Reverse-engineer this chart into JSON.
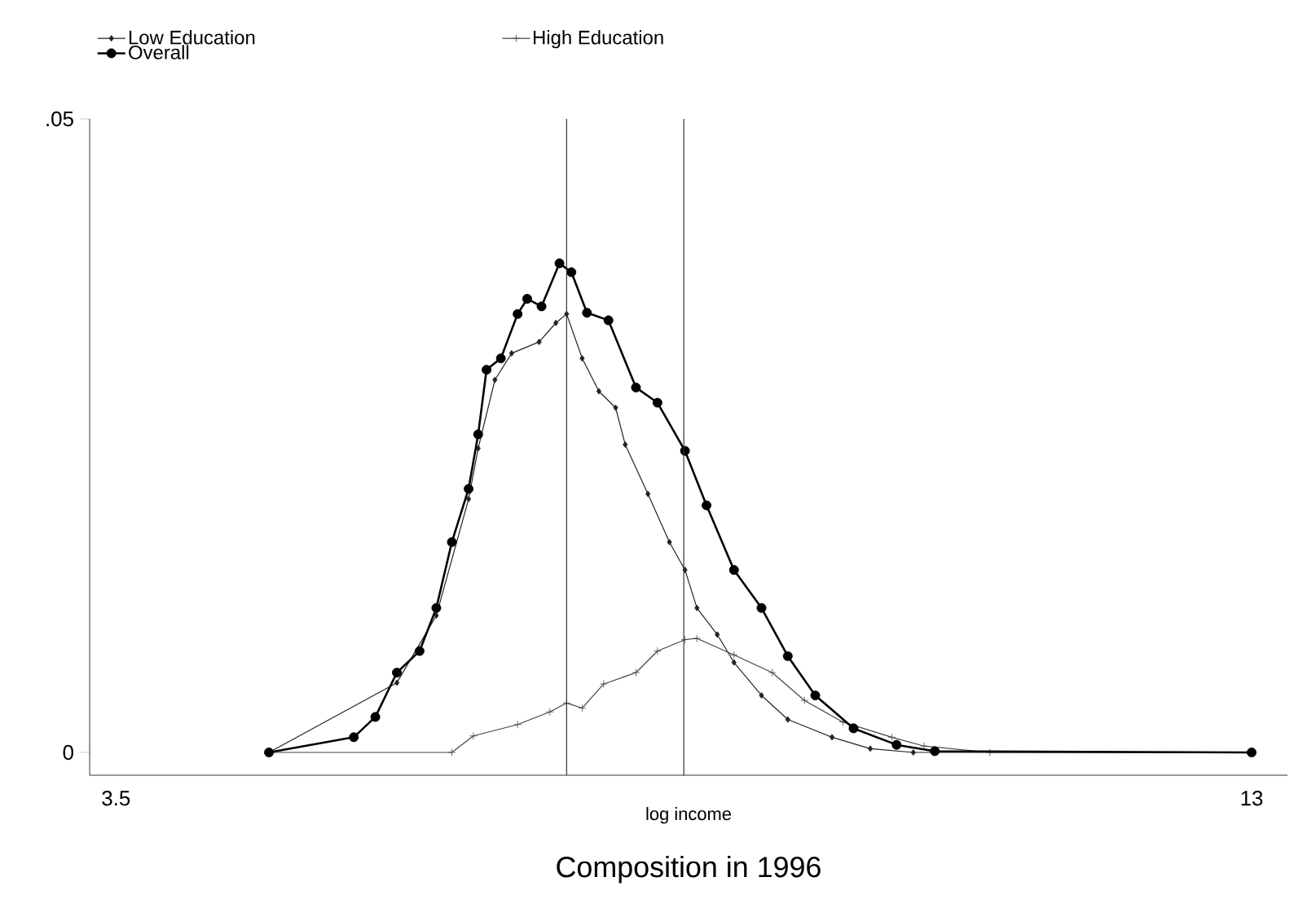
{
  "chart_data": {
    "type": "line",
    "title": "Composition in 1996",
    "xlabel": "log income",
    "xlim": [
      3.28,
      13.3
    ],
    "ylim": [
      -0.0018,
      0.05
    ],
    "xticks": [
      3.5,
      13
    ],
    "yticks": [
      0,
      {
        "value": 0.05,
        "label": ".05"
      }
    ],
    "legend": "top left",
    "grid": false,
    "ref_lines": [
      {
        "axis": "x",
        "value": 7.27,
        "color": "#333333"
      },
      {
        "axis": "x",
        "value": 8.25,
        "color": "#333333"
      }
    ],
    "series": [
      {
        "name": "Low Education",
        "color": "#222222",
        "marker": "diamond",
        "x": [
          4.78,
          5.49,
          5.85,
          6.18,
          6.45,
          6.53,
          6.67,
          6.81,
          7.04,
          7.18,
          7.27,
          7.4,
          7.54,
          7.68,
          7.76,
          7.95,
          8.13,
          8.26,
          8.36,
          8.53,
          8.67,
          8.9,
          9.12,
          9.49,
          9.81,
          10.17,
          13.0
        ],
        "values": [
          0,
          null,
          0.0055,
          0.0108,
          0.02,
          0.024,
          0.0294,
          0.0315,
          0.0324,
          0.0339,
          0.0346,
          0.0311,
          0.0285,
          0.0272,
          0.0243,
          0.0204,
          0.0166,
          0.0144,
          0.0114,
          0.0093,
          0.0071,
          0.0045,
          0.0026,
          0.0012,
          0.0003,
          0,
          0
        ]
      },
      {
        "name": "High Education",
        "color": "#444444",
        "marker": "cross",
        "x": [
          4.78,
          6.31,
          6.49,
          6.86,
          7.13,
          7.27,
          7.4,
          7.58,
          7.85,
          8.03,
          8.26,
          8.36,
          8.67,
          8.99,
          9.26,
          9.58,
          9.99,
          10.26,
          10.81,
          13.0
        ],
        "values": [
          0,
          0,
          0.0013,
          0.0022,
          0.0032,
          0.0039,
          0.0035,
          0.0054,
          0.0063,
          0.008,
          0.0089,
          0.009,
          0.0077,
          0.0063,
          0.0041,
          0.0024,
          0.0012,
          0.0005,
          0,
          0
        ]
      },
      {
        "name": "Overall",
        "color": "#000000",
        "marker": "circle",
        "x": [
          4.78,
          5.49,
          5.67,
          5.85,
          6.04,
          6.18,
          6.31,
          6.45,
          6.53,
          6.6,
          6.72,
          6.86,
          6.94,
          7.06,
          7.21,
          7.31,
          7.44,
          7.62,
          7.85,
          8.03,
          8.26,
          8.44,
          8.67,
          8.9,
          9.12,
          9.35,
          9.67,
          10.03,
          10.35,
          13.0
        ],
        "values": [
          0,
          0.0012,
          0.0028,
          0.0063,
          0.008,
          0.0114,
          0.0166,
          0.0208,
          0.0251,
          0.0302,
          0.0311,
          0.0346,
          0.0358,
          0.0352,
          0.0386,
          0.0379,
          0.0347,
          0.0341,
          0.0288,
          0.0276,
          0.0238,
          0.0195,
          0.0144,
          0.0114,
          0.0076,
          0.0045,
          0.0019,
          0.0006,
          0.0001,
          0
        ]
      }
    ]
  }
}
